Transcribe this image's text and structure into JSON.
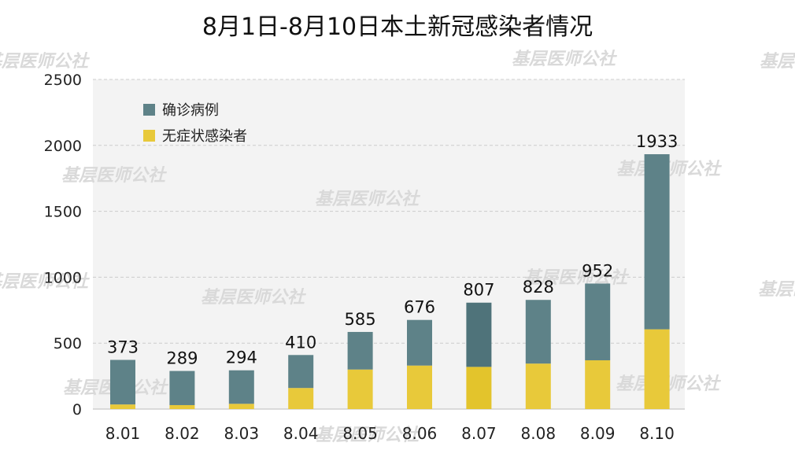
{
  "chart_data": {
    "type": "bar",
    "stacked": true,
    "title": "8月1日-8月10日本土新冠感染者情况",
    "xlabel": "",
    "ylabel": "",
    "ylim": [
      0,
      2500
    ],
    "yticks": [
      0,
      500,
      1000,
      1500,
      2000,
      2500
    ],
    "grid": true,
    "legend_position": "top-left",
    "categories": [
      "8.01",
      "8.02",
      "8.03",
      "8.04",
      "8.05",
      "8.06",
      "8.07",
      "8.08",
      "8.09",
      "8.10"
    ],
    "totals": [
      373,
      289,
      294,
      410,
      585,
      676,
      807,
      828,
      952,
      1933
    ],
    "series": [
      {
        "name": "无症状感染者",
        "color": "#e8c93a",
        "values": [
          35,
          30,
          40,
          160,
          300,
          330,
          320,
          345,
          370,
          605
        ]
      },
      {
        "name": "确诊病例",
        "color": "#5e8288",
        "values": [
          338,
          259,
          254,
          250,
          285,
          346,
          487,
          483,
          582,
          1328
        ]
      }
    ]
  },
  "watermark": {
    "text": "基层医师公社"
  }
}
